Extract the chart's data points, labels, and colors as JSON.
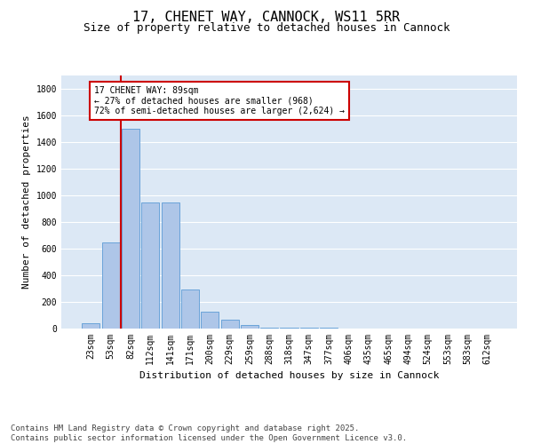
{
  "title": "17, CHENET WAY, CANNOCK, WS11 5RR",
  "subtitle": "Size of property relative to detached houses in Cannock",
  "xlabel": "Distribution of detached houses by size in Cannock",
  "ylabel": "Number of detached properties",
  "categories": [
    "23sqm",
    "53sqm",
    "82sqm",
    "112sqm",
    "141sqm",
    "171sqm",
    "200sqm",
    "229sqm",
    "259sqm",
    "288sqm",
    "318sqm",
    "347sqm",
    "377sqm",
    "406sqm",
    "435sqm",
    "465sqm",
    "494sqm",
    "524sqm",
    "553sqm",
    "583sqm",
    "612sqm"
  ],
  "values": [
    40,
    650,
    1500,
    950,
    950,
    295,
    130,
    65,
    25,
    10,
    5,
    5,
    10,
    0,
    0,
    0,
    0,
    0,
    0,
    0,
    0
  ],
  "bar_color": "#aec6e8",
  "bar_edge_color": "#5b9bd5",
  "vline_x_index": 2,
  "vline_color": "#cc0000",
  "annotation_text": "17 CHENET WAY: 89sqm\n← 27% of detached houses are smaller (968)\n72% of semi-detached houses are larger (2,624) →",
  "annotation_box_color": "#cc0000",
  "annotation_bg": "#ffffff",
  "ylim": [
    0,
    1900
  ],
  "yticks": [
    0,
    200,
    400,
    600,
    800,
    1000,
    1200,
    1400,
    1600,
    1800
  ],
  "bg_color": "#dce8f5",
  "grid_color": "#ffffff",
  "title_fontsize": 11,
  "subtitle_fontsize": 9,
  "axis_label_fontsize": 8,
  "tick_fontsize": 7,
  "footer_text": "Contains HM Land Registry data © Crown copyright and database right 2025.\nContains public sector information licensed under the Open Government Licence v3.0.",
  "footer_fontsize": 6.5
}
